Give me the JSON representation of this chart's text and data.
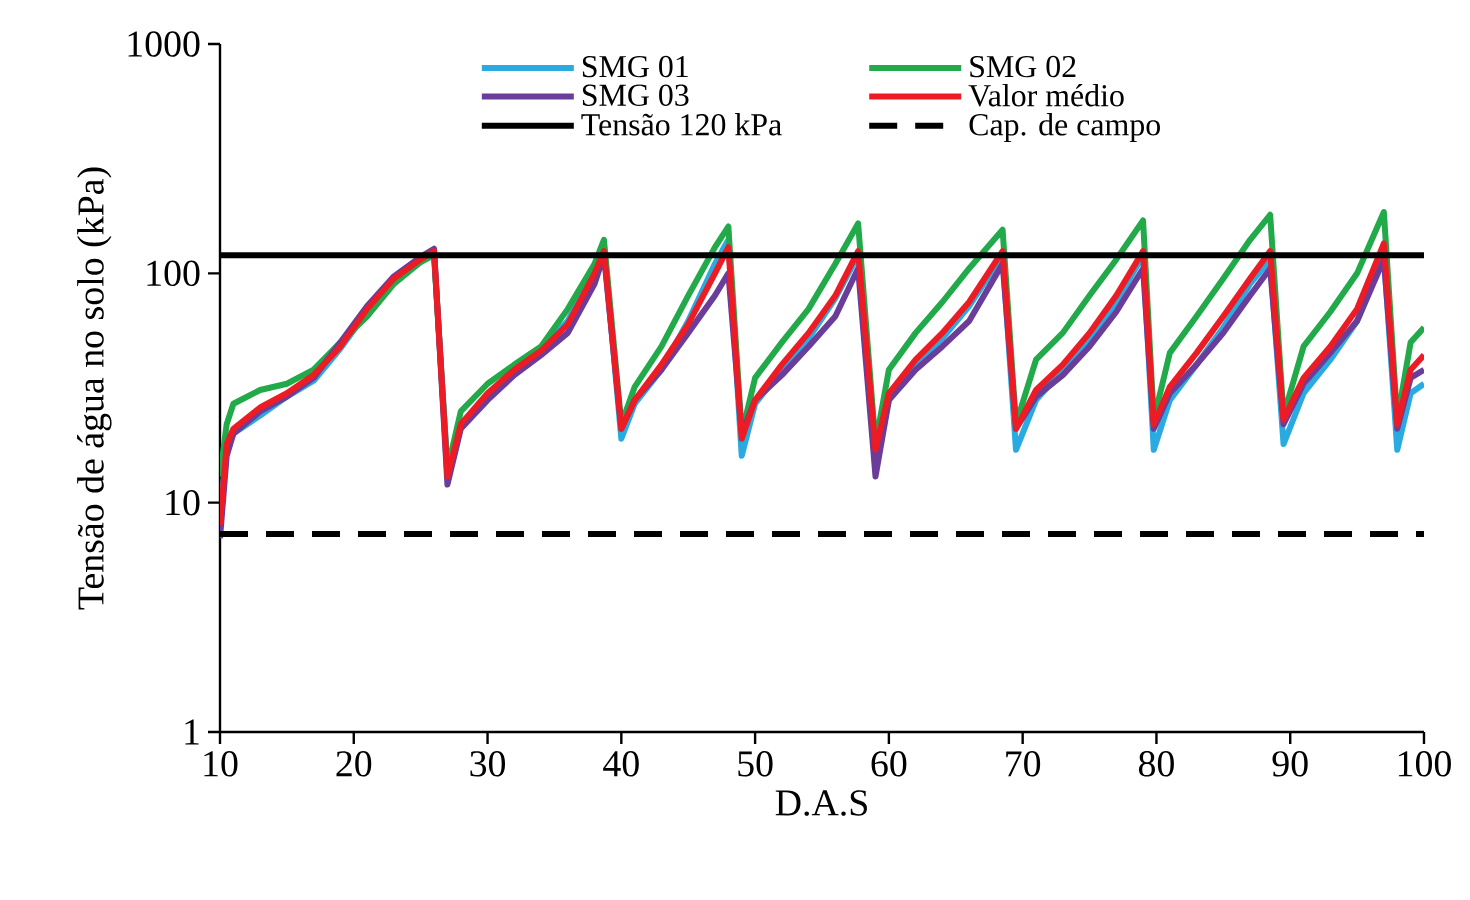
{
  "chart_data": {
    "type": "line",
    "xlabel": "D.A.S",
    "ylabel": "Tensão de água no solo (kPa)",
    "log": "y",
    "grid": false,
    "legend": "top",
    "marker": "none",
    "xlim": [
      10,
      100
    ],
    "xticks": [
      10,
      20,
      30,
      40,
      50,
      60,
      70,
      80,
      90,
      100
    ],
    "ylim": [
      1,
      1000
    ],
    "yticks": [
      1,
      10,
      100,
      1000
    ],
    "x": [
      10,
      10.5,
      11,
      13,
      15,
      17,
      19,
      21,
      23,
      25,
      26,
      27,
      28,
      30,
      32,
      34,
      36,
      38,
      38.7,
      40,
      41,
      43,
      45,
      47,
      48,
      49,
      50,
      52,
      54,
      56,
      57.7,
      59,
      60,
      62,
      64,
      66,
      68.5,
      69.5,
      71,
      73,
      75,
      77,
      79,
      79.8,
      81,
      83,
      85,
      87,
      88.5,
      89.5,
      91,
      93,
      95,
      97,
      98,
      99,
      100
    ],
    "series": [
      {
        "name": "SMG 01",
        "color": "#29abe2",
        "values": [
          9,
          17,
          20,
          24,
          29,
          34,
          47,
          68,
          92,
          112,
          122,
          14,
          22,
          29,
          38,
          47,
          62,
          105,
          130,
          19,
          27,
          38,
          62,
          110,
          140,
          16,
          27,
          38,
          52,
          78,
          120,
          15,
          28,
          40,
          52,
          72,
          120,
          17,
          28,
          38,
          52,
          75,
          120,
          17,
          28,
          40,
          58,
          90,
          115,
          18,
          30,
          42,
          62,
          120,
          17,
          30,
          33
        ]
      },
      {
        "name": "SMG 02",
        "color": "#22a94a",
        "values": [
          13,
          22,
          27,
          31,
          33,
          38,
          50,
          65,
          90,
          112,
          120,
          14,
          25,
          33,
          40,
          48,
          70,
          110,
          140,
          22,
          32,
          48,
          80,
          130,
          160,
          20,
          35,
          50,
          70,
          110,
          165,
          18,
          38,
          55,
          75,
          105,
          155,
          22,
          42,
          55,
          80,
          115,
          170,
          23,
          45,
          65,
          95,
          140,
          180,
          24,
          48,
          68,
          100,
          185,
          23,
          50,
          58
        ]
      },
      {
        "name": "SMG 03",
        "color": "#6a3d9a",
        "values": [
          7,
          16,
          20,
          25,
          29,
          35,
          50,
          72,
          97,
          118,
          128,
          12,
          21,
          28,
          36,
          44,
          55,
          90,
          120,
          21,
          28,
          38,
          55,
          80,
          100,
          20,
          28,
          36,
          48,
          65,
          105,
          13,
          28,
          38,
          48,
          62,
          110,
          21,
          29,
          36,
          48,
          68,
          105,
          21,
          30,
          40,
          55,
          80,
          105,
          22,
          33,
          45,
          62,
          115,
          21,
          35,
          38
        ]
      },
      {
        "name": "Valor médio",
        "color": "#ed1c24",
        "values": [
          8,
          18,
          21,
          26,
          30,
          36,
          48,
          70,
          95,
          115,
          125,
          13,
          22,
          30,
          38,
          46,
          60,
          100,
          125,
          21,
          28,
          40,
          60,
          100,
          130,
          19,
          28,
          40,
          55,
          80,
          125,
          17,
          30,
          42,
          55,
          75,
          125,
          21,
          31,
          40,
          55,
          80,
          125,
          22,
          32,
          45,
          65,
          95,
          125,
          23,
          35,
          48,
          70,
          135,
          22,
          38,
          44
        ]
      }
    ],
    "ref_lines": [
      {
        "axis": "y",
        "value": 120,
        "label": "Tensão 120 kPa",
        "color": "#000000",
        "line_style": "solid"
      },
      {
        "axis": "y",
        "value": 7.3,
        "label": "Cap. de campo",
        "color": "#000000",
        "line_style": "dashed"
      }
    ]
  }
}
